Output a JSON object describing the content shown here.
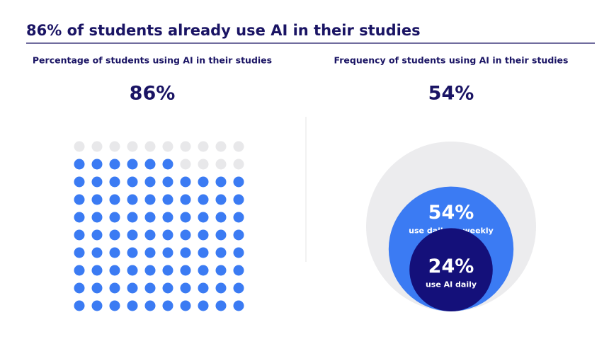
{
  "title": "86% of students already use AI in their studies",
  "chart_data": [
    {
      "type": "waffle",
      "subtitle": "Percentage of students using AI in their studies",
      "values": [
        86
      ],
      "value_labels": [
        "86%"
      ],
      "color": "#3b7bf3",
      "empty_color": "#e8e8ea"
    },
    {
      "type": "nested_circles",
      "subtitle": "Frequency of students using AI in their studies",
      "categories": [
        "use daily or weekly",
        "use AI daily"
      ],
      "values": [
        54,
        24
      ],
      "value_labels": [
        "54%",
        "24%"
      ],
      "colors": [
        "#3b7bf3",
        "#14107a"
      ],
      "background_color": "#ececee"
    }
  ]
}
